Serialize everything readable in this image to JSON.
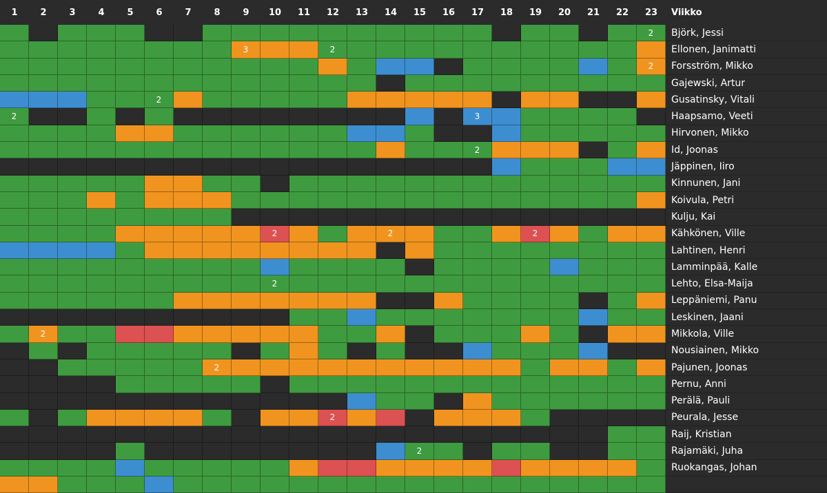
{
  "colors": {
    "g": "#3f9b3f",
    "k": "#2b2b2b",
    "o": "#f0941f",
    "b": "#3d8ed0",
    "r": "#dc5151"
  },
  "header": {
    "weeks": [
      "1",
      "2",
      "3",
      "4",
      "5",
      "6",
      "7",
      "8",
      "9",
      "10",
      "11",
      "12",
      "13",
      "14",
      "15",
      "16",
      "17",
      "18",
      "19",
      "20",
      "21",
      "22",
      "23"
    ],
    "name_col_label": "Viikko"
  },
  "rows": [
    {
      "name": "Björk, Jessi",
      "cells": [
        "g",
        "k",
        "g",
        "g",
        "g",
        "k",
        "k",
        "g",
        "g",
        "g",
        "g",
        "g",
        "g",
        "g",
        "g",
        "g",
        "g",
        "k",
        "g",
        "g",
        "k",
        "g",
        "g"
      ],
      "labels": {
        "22": "2"
      }
    },
    {
      "name": "Ellonen, Janimatti",
      "cells": [
        "g",
        "g",
        "g",
        "g",
        "g",
        "g",
        "g",
        "g",
        "o",
        "o",
        "o",
        "g",
        "g",
        "g",
        "g",
        "g",
        "g",
        "g",
        "g",
        "g",
        "g",
        "g",
        "o"
      ],
      "labels": {
        "8": "3",
        "11": "2"
      }
    },
    {
      "name": "Forsström, Mikko",
      "cells": [
        "g",
        "g",
        "g",
        "g",
        "g",
        "g",
        "g",
        "g",
        "g",
        "g",
        "g",
        "o",
        "g",
        "b",
        "b",
        "k",
        "g",
        "g",
        "g",
        "g",
        "b",
        "g",
        "o"
      ],
      "labels": {
        "22": "2"
      }
    },
    {
      "name": "Gajewski, Artur",
      "cells": [
        "g",
        "g",
        "g",
        "g",
        "g",
        "g",
        "g",
        "g",
        "g",
        "g",
        "g",
        "g",
        "g",
        "k",
        "g",
        "g",
        "g",
        "g",
        "g",
        "g",
        "g",
        "g",
        "g"
      ],
      "labels": {}
    },
    {
      "name": "Gusatinsky, Vitali",
      "cells": [
        "b",
        "b",
        "b",
        "g",
        "g",
        "g",
        "o",
        "g",
        "g",
        "g",
        "g",
        "g",
        "o",
        "o",
        "o",
        "o",
        "o",
        "k",
        "o",
        "o",
        "k",
        "k",
        "o"
      ],
      "labels": {
        "5": "2"
      }
    },
    {
      "name": "Haapsamo, Veeti",
      "cells": [
        "g",
        "k",
        "k",
        "g",
        "k",
        "g",
        "k",
        "k",
        "k",
        "k",
        "k",
        "k",
        "k",
        "k",
        "b",
        "k",
        "b",
        "b",
        "g",
        "g",
        "g",
        "g",
        "k"
      ],
      "labels": {
        "0": "2",
        "16": "3"
      }
    },
    {
      "name": "Hirvonen, Mikko",
      "cells": [
        "g",
        "g",
        "g",
        "g",
        "o",
        "o",
        "g",
        "g",
        "g",
        "g",
        "g",
        "g",
        "b",
        "b",
        "g",
        "k",
        "k",
        "b",
        "g",
        "g",
        "g",
        "g",
        "g"
      ],
      "labels": {}
    },
    {
      "name": "Id, Joonas",
      "cells": [
        "g",
        "g",
        "g",
        "g",
        "g",
        "g",
        "g",
        "g",
        "g",
        "g",
        "g",
        "g",
        "g",
        "o",
        "g",
        "g",
        "g",
        "o",
        "o",
        "o",
        "k",
        "g",
        "o"
      ],
      "labels": {
        "16": "2"
      }
    },
    {
      "name": "Jäppinen, Iiro",
      "cells": [
        "k",
        "k",
        "k",
        "k",
        "k",
        "k",
        "k",
        "k",
        "k",
        "k",
        "k",
        "k",
        "k",
        "k",
        "k",
        "k",
        "k",
        "b",
        "g",
        "g",
        "g",
        "b",
        "b"
      ],
      "labels": {}
    },
    {
      "name": "Kinnunen, Jani",
      "cells": [
        "g",
        "g",
        "g",
        "g",
        "g",
        "o",
        "o",
        "g",
        "g",
        "k",
        "g",
        "g",
        "g",
        "g",
        "g",
        "g",
        "g",
        "g",
        "g",
        "g",
        "g",
        "g",
        "g"
      ],
      "labels": {}
    },
    {
      "name": "Koivula, Petri",
      "cells": [
        "g",
        "g",
        "g",
        "o",
        "g",
        "o",
        "o",
        "o",
        "g",
        "g",
        "g",
        "g",
        "g",
        "g",
        "g",
        "g",
        "g",
        "g",
        "g",
        "g",
        "g",
        "g",
        "o"
      ],
      "labels": {}
    },
    {
      "name": "Kulju, Kai",
      "cells": [
        "g",
        "g",
        "g",
        "g",
        "g",
        "g",
        "g",
        "g",
        "k",
        "k",
        "k",
        "k",
        "k",
        "k",
        "k",
        "k",
        "k",
        "k",
        "k",
        "k",
        "k",
        "k",
        "k"
      ],
      "labels": {}
    },
    {
      "name": "Kähkönen, Ville",
      "cells": [
        "g",
        "g",
        "g",
        "g",
        "o",
        "o",
        "o",
        "o",
        "o",
        "r",
        "o",
        "g",
        "o",
        "o",
        "o",
        "g",
        "g",
        "o",
        "r",
        "o",
        "g",
        "o",
        "o"
      ],
      "labels": {
        "9": "2",
        "13": "2",
        "18": "2"
      }
    },
    {
      "name": "Lahtinen, Henri",
      "cells": [
        "b",
        "b",
        "b",
        "b",
        "g",
        "o",
        "o",
        "o",
        "o",
        "o",
        "o",
        "o",
        "o",
        "k",
        "o",
        "g",
        "g",
        "g",
        "g",
        "g",
        "g",
        "g",
        "g"
      ],
      "labels": {}
    },
    {
      "name": "Lamminpää, Kalle",
      "cells": [
        "g",
        "g",
        "g",
        "g",
        "g",
        "g",
        "g",
        "g",
        "g",
        "b",
        "g",
        "g",
        "g",
        "g",
        "k",
        "g",
        "g",
        "g",
        "g",
        "b",
        "g",
        "g",
        "g"
      ],
      "labels": {}
    },
    {
      "name": "Lehto, Elsa-Maija",
      "cells": [
        "g",
        "g",
        "g",
        "g",
        "g",
        "g",
        "g",
        "g",
        "g",
        "g",
        "g",
        "g",
        "g",
        "g",
        "g",
        "g",
        "g",
        "g",
        "g",
        "g",
        "g",
        "g",
        "g"
      ],
      "labels": {
        "9": "2"
      }
    },
    {
      "name": "Leppäniemi, Panu",
      "cells": [
        "g",
        "g",
        "g",
        "g",
        "g",
        "g",
        "o",
        "o",
        "o",
        "o",
        "o",
        "o",
        "o",
        "k",
        "k",
        "o",
        "g",
        "g",
        "g",
        "g",
        "k",
        "g",
        "o"
      ],
      "labels": {}
    },
    {
      "name": "Leskinen, Jaani",
      "cells": [
        "k",
        "k",
        "k",
        "k",
        "k",
        "k",
        "k",
        "k",
        "k",
        "k",
        "g",
        "g",
        "b",
        "g",
        "g",
        "g",
        "g",
        "g",
        "g",
        "g",
        "b",
        "g",
        "g"
      ],
      "labels": {}
    },
    {
      "name": "Mikkola, Ville",
      "cells": [
        "g",
        "o",
        "g",
        "g",
        "r",
        "r",
        "o",
        "o",
        "o",
        "o",
        "o",
        "g",
        "g",
        "o",
        "k",
        "g",
        "g",
        "g",
        "o",
        "g",
        "k",
        "o",
        "o"
      ],
      "labels": {
        "1": "2"
      }
    },
    {
      "name": "Nousiainen, Mikko",
      "cells": [
        "k",
        "g",
        "k",
        "g",
        "g",
        "g",
        "g",
        "g",
        "k",
        "g",
        "o",
        "g",
        "k",
        "g",
        "k",
        "k",
        "b",
        "g",
        "g",
        "g",
        "b",
        "k",
        "k"
      ],
      "labels": {}
    },
    {
      "name": "Pajunen, Joonas",
      "cells": [
        "k",
        "k",
        "g",
        "g",
        "g",
        "g",
        "g",
        "o",
        "o",
        "o",
        "o",
        "o",
        "o",
        "o",
        "o",
        "o",
        "o",
        "o",
        "g",
        "o",
        "o",
        "g",
        "o"
      ],
      "labels": {
        "7": "2"
      }
    },
    {
      "name": "Pernu, Anni",
      "cells": [
        "k",
        "k",
        "k",
        "k",
        "g",
        "g",
        "g",
        "g",
        "g",
        "k",
        "g",
        "g",
        "g",
        "g",
        "g",
        "g",
        "g",
        "g",
        "g",
        "g",
        "g",
        "g",
        "g"
      ],
      "labels": {}
    },
    {
      "name": "Perälä, Pauli",
      "cells": [
        "k",
        "k",
        "k",
        "k",
        "k",
        "k",
        "k",
        "k",
        "k",
        "k",
        "k",
        "k",
        "b",
        "g",
        "g",
        "k",
        "o",
        "g",
        "g",
        "g",
        "g",
        "g",
        "g"
      ],
      "labels": {}
    },
    {
      "name": "Peurala, Jesse",
      "cells": [
        "g",
        "k",
        "g",
        "o",
        "o",
        "o",
        "o",
        "g",
        "k",
        "o",
        "o",
        "r",
        "o",
        "r",
        "k",
        "o",
        "o",
        "o",
        "g",
        "k",
        "k",
        "k",
        "k"
      ],
      "labels": {
        "11": "2"
      }
    },
    {
      "name": "Raij, Kristian",
      "cells": [
        "k",
        "k",
        "k",
        "k",
        "k",
        "k",
        "k",
        "k",
        "k",
        "k",
        "k",
        "k",
        "k",
        "k",
        "k",
        "k",
        "k",
        "k",
        "k",
        "k",
        "k",
        "g",
        "g"
      ],
      "labels": {}
    },
    {
      "name": "Rajamäki, Juha",
      "cells": [
        "k",
        "k",
        "k",
        "k",
        "g",
        "k",
        "k",
        "k",
        "k",
        "k",
        "k",
        "k",
        "k",
        "b",
        "g",
        "g",
        "k",
        "g",
        "g",
        "k",
        "k",
        "g",
        "g"
      ],
      "labels": {
        "14": "2"
      }
    },
    {
      "name": "Ruokangas, Johan",
      "cells": [
        "g",
        "g",
        "g",
        "g",
        "b",
        "g",
        "g",
        "g",
        "g",
        "g",
        "o",
        "r",
        "r",
        "o",
        "o",
        "o",
        "o",
        "r",
        "o",
        "o",
        "o",
        "o",
        "g"
      ],
      "labels": {}
    },
    {
      "name": "",
      "cells": [
        "o",
        "o",
        "g",
        "g",
        "g",
        "b",
        "g",
        "g",
        "g",
        "g",
        "g",
        "g",
        "g",
        "g",
        "g",
        "g",
        "g",
        "g",
        "g",
        "g",
        "g",
        "g",
        "g"
      ],
      "labels": {}
    }
  ]
}
